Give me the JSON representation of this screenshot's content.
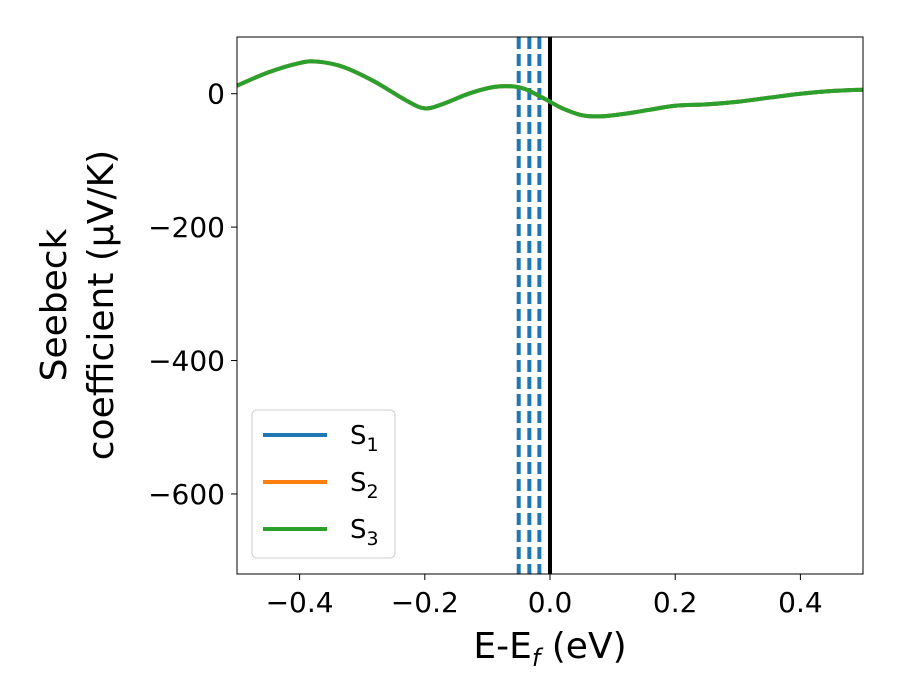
{
  "chart_data": {
    "type": "line",
    "xlabel": "E-E",
    "xlabel_sub": "f",
    "xlabel_unit": " (eV)",
    "ylabel_line1": "Seebeck",
    "ylabel_line2": "coefficient  (μV/K)",
    "xlim": [
      -0.5,
      0.5
    ],
    "ylim": [
      -720,
      85
    ],
    "xticks": [
      -0.4,
      -0.2,
      0.0,
      0.2,
      0.4
    ],
    "xtick_labels": [
      "−0.4",
      "−0.2",
      "0.0",
      "0.2",
      "0.4"
    ],
    "yticks": [
      0,
      -200,
      -400,
      -600
    ],
    "ytick_labels": [
      "0",
      "−200",
      "−400",
      "−600"
    ],
    "grid": false,
    "legend_position": "lower-left",
    "x": [
      -0.5,
      -0.45,
      -0.4,
      -0.37,
      -0.33,
      -0.28,
      -0.23,
      -0.2,
      -0.17,
      -0.13,
      -0.09,
      -0.06,
      -0.04,
      -0.02,
      0.0,
      0.02,
      0.05,
      0.08,
      0.12,
      0.16,
      0.2,
      0.25,
      0.3,
      0.35,
      0.4,
      0.45,
      0.5
    ],
    "series": [
      {
        "name": "S",
        "sub": "1",
        "color": "#1f77b4",
        "values": [
          12,
          32,
          46,
          48,
          40,
          18,
          -10,
          -22,
          -15,
          0,
          10,
          11,
          7,
          -2,
          -12,
          -22,
          -32,
          -34,
          -30,
          -24,
          -18,
          -16,
          -12,
          -6,
          0,
          4,
          6
        ]
      },
      {
        "name": "S",
        "sub": "2",
        "color": "#ff7f0e",
        "values": [
          12,
          32,
          46,
          48,
          40,
          18,
          -10,
          -22,
          -15,
          0,
          10,
          11,
          7,
          -2,
          -12,
          -22,
          -32,
          -34,
          -30,
          -24,
          -18,
          -16,
          -12,
          -6,
          0,
          4,
          6
        ]
      },
      {
        "name": "S",
        "sub": "3",
        "color": "#2ca02c",
        "values": [
          12,
          32,
          46,
          48,
          40,
          18,
          -10,
          -22,
          -15,
          0,
          10,
          11,
          7,
          -2,
          -12,
          -22,
          -32,
          -34,
          -30,
          -24,
          -18,
          -16,
          -12,
          -6,
          0,
          4,
          6
        ]
      }
    ],
    "vlines_dashed": {
      "color": "#1f77b4",
      "x": [
        -0.05,
        -0.033,
        -0.017
      ]
    },
    "vline_solid": {
      "color": "#000000",
      "x": 0.0
    }
  }
}
